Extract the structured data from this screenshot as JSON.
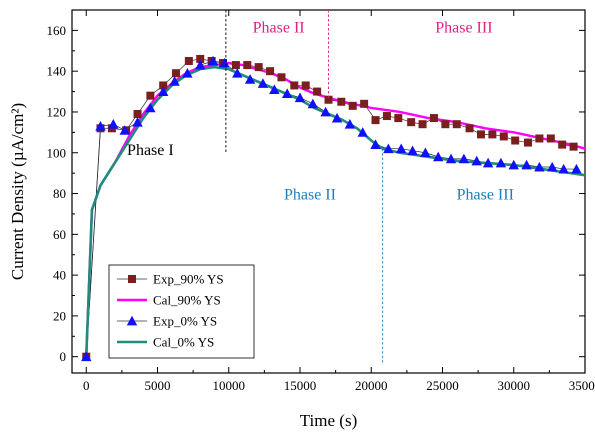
{
  "chart_data": {
    "type": "line",
    "xlabel": "Time (s)",
    "ylabel": "Current Density (µA/cm²)",
    "xlim": [
      -1000,
      35000
    ],
    "ylim": [
      -8,
      170
    ],
    "xticks": [
      0,
      5000,
      10000,
      15000,
      20000,
      25000,
      30000,
      35000
    ],
    "yticks": [
      0,
      20,
      40,
      60,
      80,
      100,
      120,
      140,
      160
    ],
    "xtick_labels": [
      "0",
      "5000",
      "10000",
      "15000",
      "20000",
      "25000",
      "30000",
      "35000"
    ],
    "ytick_labels": [
      "0",
      "20",
      "40",
      "60",
      "80",
      "100",
      "120",
      "140",
      "160"
    ],
    "grid": false,
    "legend_position": "bottom-left",
    "colors": {
      "exp90": "#7a1e1e",
      "cal90": "#ff00ff",
      "exp0": "#1010ff",
      "cal0": "#1f8c7c",
      "phase_upper": "#e0218a",
      "phase_lower": "#1c7fbf",
      "phase1": "#000000"
    },
    "series": [
      {
        "name": "Exp_90% YS",
        "marker": "square",
        "x": [
          0,
          1000,
          1800,
          2800,
          3600,
          4500,
          5400,
          6300,
          7200,
          8000,
          8800,
          9600,
          10500,
          11300,
          12100,
          12900,
          13700,
          14600,
          15400,
          16200,
          17000,
          17900,
          18700,
          19500,
          20300,
          21100,
          21900,
          22800,
          23600,
          24400,
          25200,
          26000,
          26900,
          27700,
          28500,
          29300,
          30100,
          31000,
          31800,
          32600,
          33400,
          34200
        ],
        "y": [
          0,
          112,
          112,
          111,
          119,
          128,
          133,
          139,
          145,
          146,
          145,
          144,
          143,
          143,
          142,
          140,
          137,
          133,
          133,
          130,
          126,
          125,
          123,
          124,
          116,
          118,
          117,
          115,
          114,
          117,
          114,
          114,
          112,
          109,
          109,
          108,
          106,
          105,
          107,
          107,
          104,
          103
        ]
      },
      {
        "name": "Cal_90% YS",
        "line": "solid",
        "x": [
          0,
          400,
          1000,
          2000,
          3000,
          4000,
          5000,
          6000,
          7000,
          8000,
          9000,
          10000,
          11000,
          12000,
          13000,
          14000,
          15000,
          16000,
          17000,
          18000,
          20000,
          22000,
          24000,
          26000,
          28000,
          30000,
          32000,
          34000,
          35000
        ],
        "y": [
          0,
          72,
          84,
          95,
          108,
          119,
          128,
          134,
          139,
          142,
          143,
          144,
          143,
          141,
          139,
          136,
          132,
          129,
          127,
          125,
          122,
          120,
          117,
          115,
          112,
          110,
          107,
          104,
          102
        ]
      },
      {
        "name": "Exp_0% YS",
        "marker": "triangle",
        "x": [
          0,
          1000,
          1900,
          2700,
          3600,
          4500,
          5400,
          6200,
          7100,
          8000,
          8900,
          9700,
          10600,
          11500,
          12400,
          13200,
          14100,
          15000,
          15900,
          16800,
          17600,
          18500,
          19400,
          20300,
          21200,
          22100,
          22900,
          23800,
          24700,
          25600,
          26500,
          27400,
          28200,
          29100,
          30000,
          30900,
          31800,
          32700,
          33500,
          34400
        ],
        "y": [
          0,
          113,
          114,
          111,
          115,
          122,
          130,
          135,
          139,
          143,
          145,
          144,
          139,
          136,
          134,
          131,
          129,
          127,
          124,
          120,
          117,
          114,
          110,
          104,
          102,
          102,
          101,
          100,
          98,
          97,
          97,
          96,
          95,
          95,
          94,
          94,
          93,
          93,
          92,
          92
        ]
      },
      {
        "name": "Cal_0% YS",
        "line": "solid",
        "x": [
          0,
          400,
          1000,
          2000,
          3000,
          4000,
          5000,
          6000,
          7000,
          8000,
          9000,
          10000,
          11000,
          12000,
          13000,
          14000,
          15000,
          16000,
          17000,
          18000,
          19000,
          20000,
          20800,
          22000,
          24000,
          26000,
          28000,
          30000,
          32000,
          34000,
          35000
        ],
        "y": [
          0,
          72,
          84,
          95,
          106,
          117,
          126,
          133,
          138,
          141,
          142,
          141,
          138,
          135,
          132,
          129,
          126,
          122,
          119,
          116,
          112,
          106,
          102,
          100,
          98,
          96,
          95,
          94,
          92,
          90,
          89
        ]
      }
    ],
    "phase_boundaries": [
      {
        "x": 9800,
        "y_from": 170,
        "y_to": 100,
        "color": "phase1"
      },
      {
        "x": 17000,
        "y_from": 170,
        "y_to": 127,
        "color": "phase_upper"
      },
      {
        "x": 20800,
        "y_from": 102,
        "y_to": -4,
        "color": "phase_lower"
      }
    ],
    "annotations": [
      {
        "text": "Phase I",
        "x": 4500,
        "y": 99,
        "color": "phase1"
      },
      {
        "text": "Phase II",
        "x": 13500,
        "y": 159,
        "color": "phase_upper"
      },
      {
        "text": "Phase III",
        "x": 26500,
        "y": 159,
        "color": "phase_upper"
      },
      {
        "text": "Phase II",
        "x": 15700,
        "y": 77,
        "color": "phase_lower"
      },
      {
        "text": "Phase III",
        "x": 28000,
        "y": 77,
        "color": "phase_lower"
      }
    ]
  }
}
